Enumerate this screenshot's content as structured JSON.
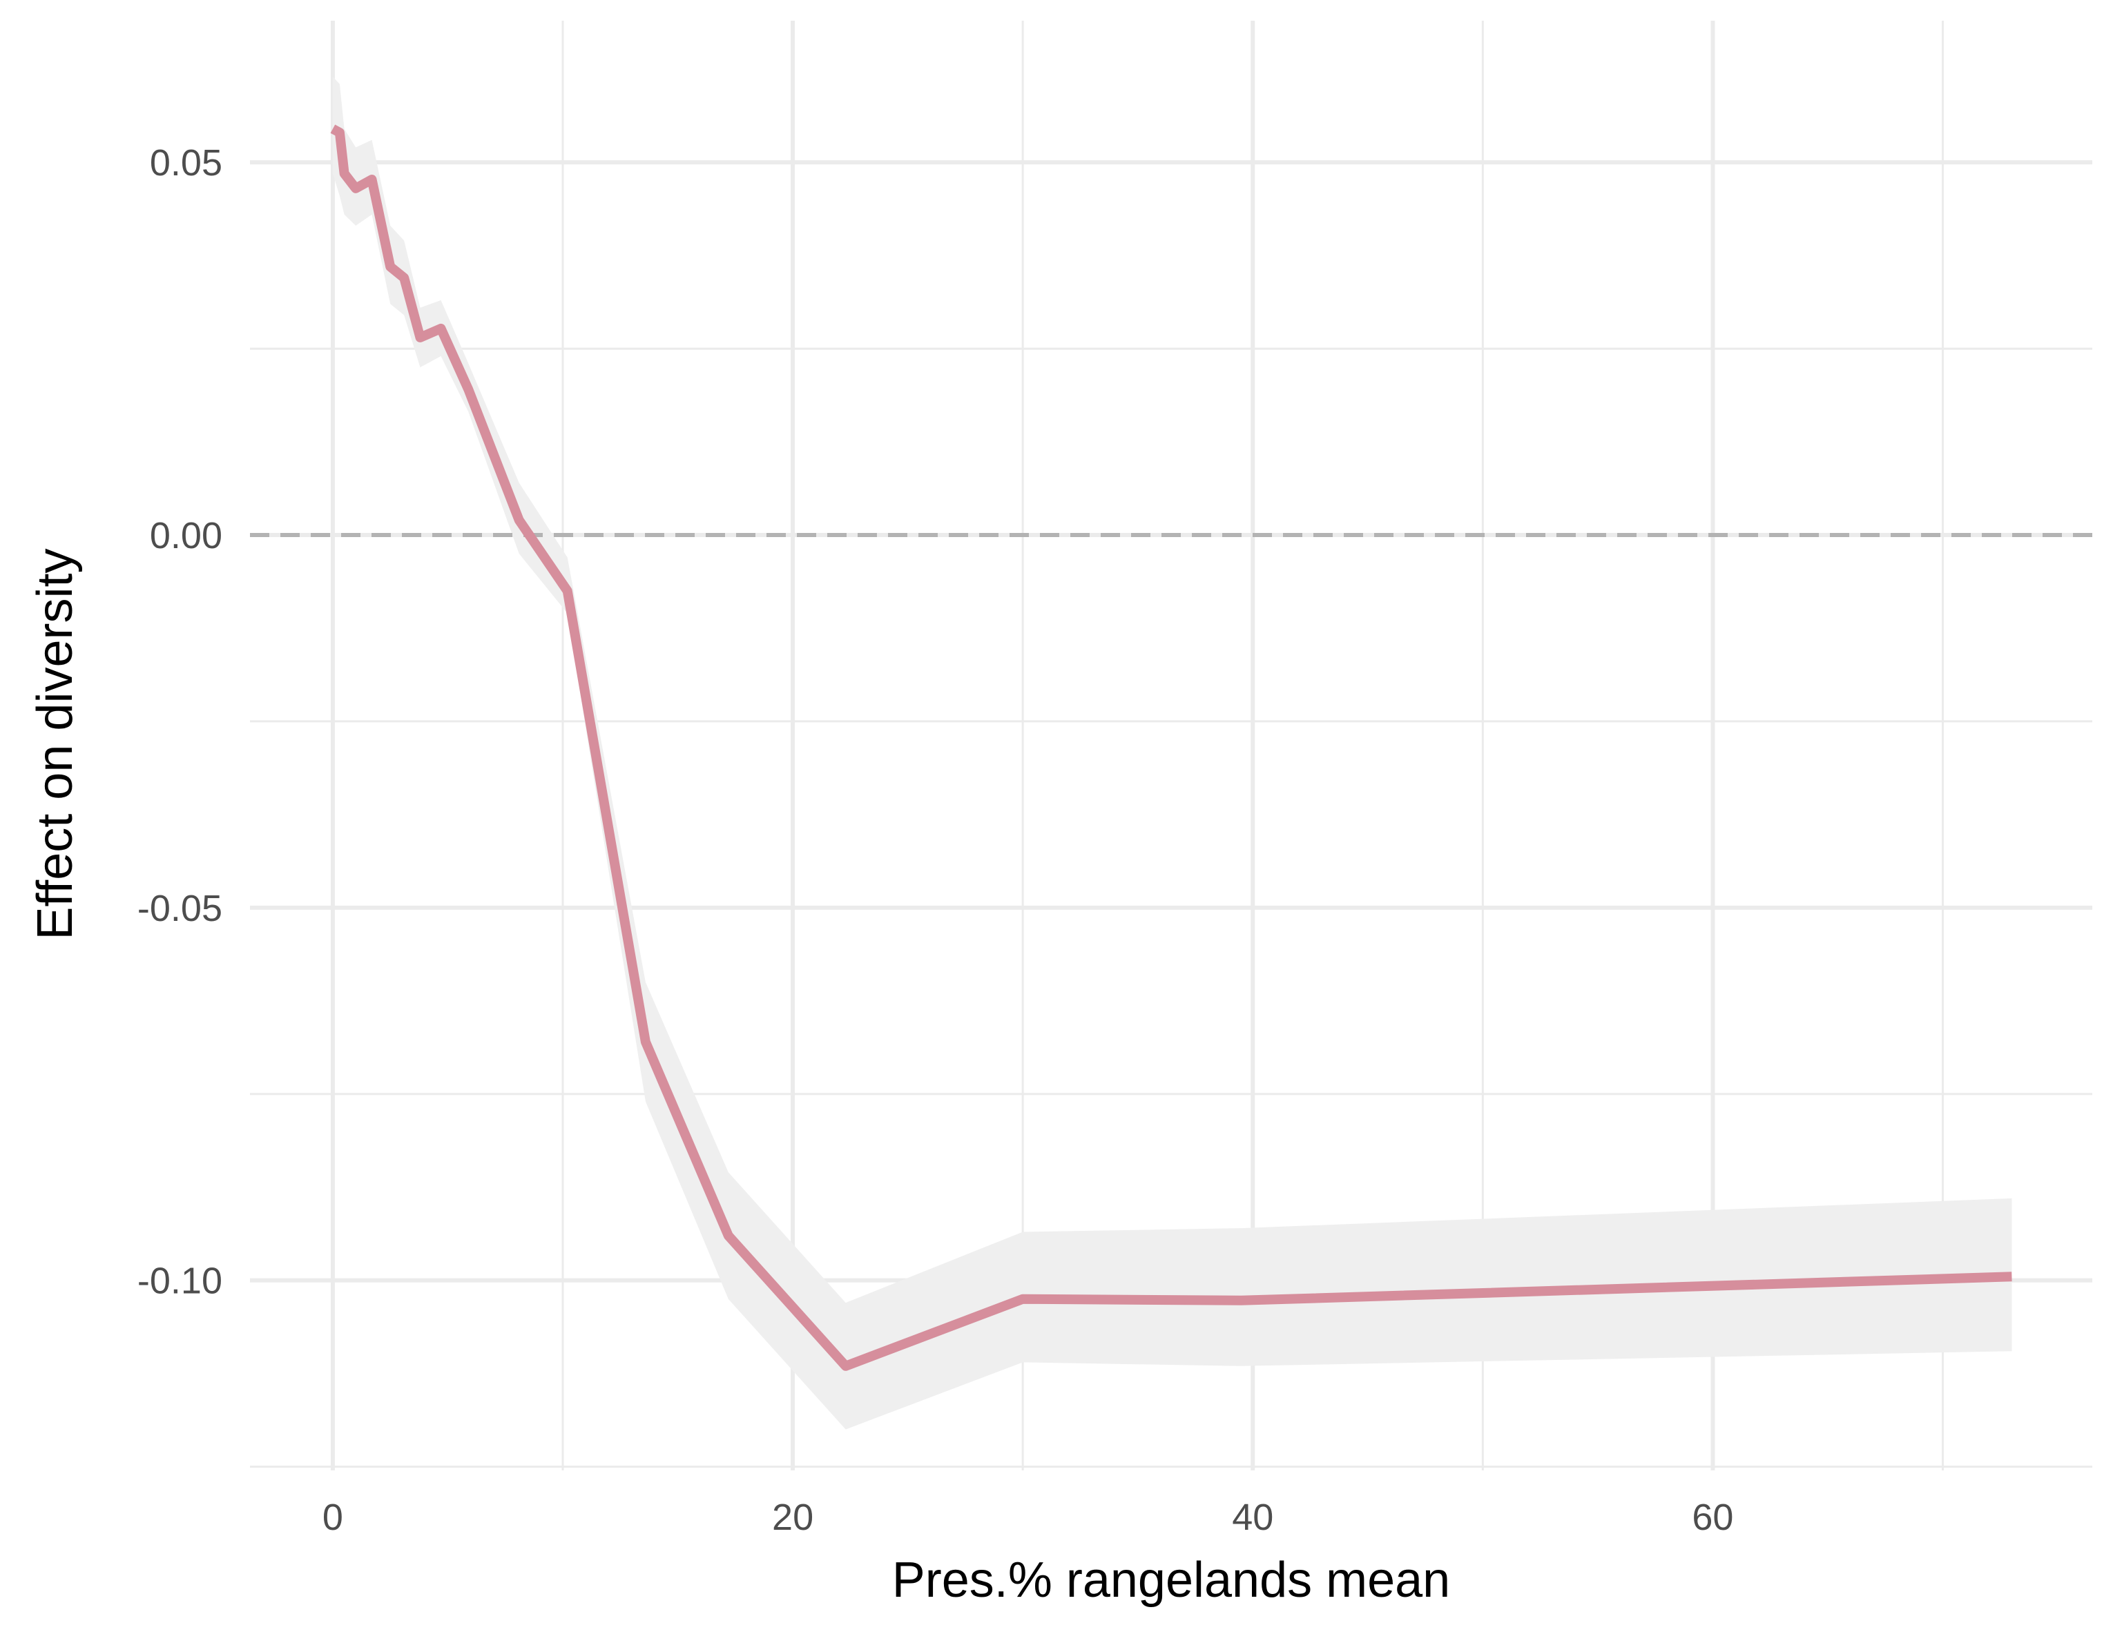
{
  "chart_data": {
    "type": "line",
    "title": "",
    "xlabel": "Pres.% rangelands mean",
    "ylabel": "Effect on diversity",
    "xlim": [
      -3.6,
      76.5
    ],
    "ylim": [
      -0.1255,
      0.069
    ],
    "x_ticks": [
      0,
      20,
      40,
      60
    ],
    "x_tick_labels": [
      "0",
      "20",
      "40",
      "60"
    ],
    "y_ticks": [
      -0.1,
      -0.05,
      0.0,
      0.05
    ],
    "y_tick_labels": [
      "-0.10",
      "-0.05",
      "0.00",
      "0.05"
    ],
    "grid": true,
    "reference_line": {
      "y": 0,
      "style": "dashed",
      "color": "#b3b3b3"
    },
    "colors": {
      "line": "#d68e9c",
      "band": "#efefef",
      "grid": "#ebebeb"
    },
    "series": [
      {
        "x": [
          0,
          0.3,
          0.5,
          1.0,
          1.7,
          2.5,
          3.1,
          3.8,
          4.7,
          5.9,
          8.1,
          10.2,
          13.6,
          17.2,
          22.3,
          30.0,
          39.5,
          73.0
        ],
        "y": [
          0.0545,
          0.054,
          0.0485,
          0.0465,
          0.0477,
          0.036,
          0.0345,
          0.0265,
          0.0277,
          0.0195,
          0.002,
          -0.0075,
          -0.068,
          -0.094,
          -0.1115,
          -0.1025,
          -0.1027,
          -0.0995
        ],
        "lower": [
          0.0485,
          0.0455,
          0.043,
          0.0415,
          0.043,
          0.031,
          0.0295,
          0.0225,
          0.024,
          0.0165,
          -0.0025,
          -0.0105,
          -0.076,
          -0.1025,
          -0.12,
          -0.111,
          -0.1115,
          -0.1095
        ],
        "upper": [
          0.0615,
          0.0605,
          0.0545,
          0.052,
          0.053,
          0.0415,
          0.0395,
          0.0305,
          0.0315,
          0.023,
          0.007,
          -0.003,
          -0.06,
          -0.0855,
          -0.103,
          -0.0935,
          -0.093,
          -0.089
        ]
      }
    ]
  }
}
